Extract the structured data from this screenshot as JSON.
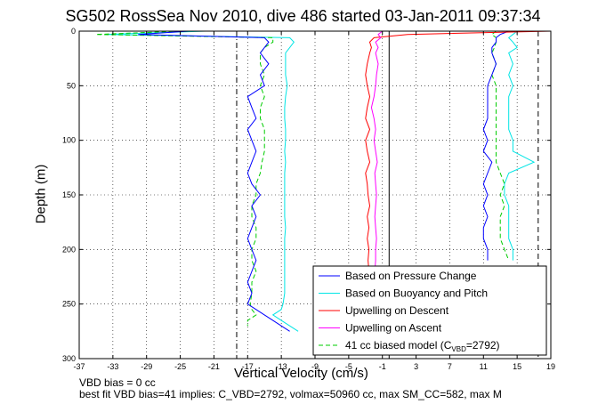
{
  "chart_data": {
    "type": "line",
    "title": "SG502 RossSea Nov 2010, dive 486 started 03-Jan-2011 09:37:34",
    "xlabel": "Vertical Velocity (cm/s)",
    "ylabel": "Depth (m)",
    "xlim": [
      -37,
      19
    ],
    "ylim": [
      0,
      300
    ],
    "y_reversed": true,
    "grid": true,
    "xticks": [
      -37,
      -33,
      -29,
      -25,
      -21,
      -17,
      -13,
      -9,
      -5,
      -1,
      3,
      7,
      11,
      15,
      19
    ],
    "yticks": [
      0,
      50,
      100,
      150,
      200,
      250,
      300
    ],
    "legend_position": "bottom-right",
    "vertical_reference_lines": [
      -18.3,
      -0.2,
      17.5
    ],
    "series": [
      {
        "name": "Based on Pressure Change",
        "color": "#0000ff",
        "style": "solid",
        "y": [
          0,
          3,
          6,
          10,
          15,
          20,
          30,
          40,
          50,
          60,
          70,
          80,
          90,
          100,
          110,
          120,
          130,
          140,
          150,
          160,
          170,
          180,
          190,
          200,
          210,
          220,
          230,
          240,
          250,
          255,
          260,
          265,
          270,
          275
        ],
        "x_descent": [
          -24,
          -30,
          -15,
          -14.5,
          -15,
          -15.5,
          -14.5,
          -15.5,
          -15,
          -17,
          -16.5,
          -16,
          -17,
          -16.5,
          -16,
          -16.5,
          -17,
          -16.5,
          -15.5,
          -16.5,
          -16,
          -16.5,
          -17,
          -16.5,
          -16,
          -16.5,
          -17,
          -16.5,
          -17,
          -16,
          -15,
          -14,
          -13,
          -12
        ],
        "x_ascent": [
          14,
          13,
          12.5,
          12.5,
          12,
          12,
          12.5,
          12,
          11.5,
          11.5,
          11.5,
          11.5,
          11,
          11.5,
          11,
          12,
          11.5,
          11,
          11.5,
          11,
          11.5,
          11,
          11,
          11.5,
          11.5
        ]
      },
      {
        "name": "Based on Buoyancy and Pitch",
        "color": "#00e5e5",
        "style": "solid",
        "y": [
          0,
          3,
          6,
          10,
          15,
          20,
          30,
          40,
          50,
          60,
          70,
          80,
          90,
          100,
          110,
          120,
          130,
          140,
          150,
          160,
          170,
          180,
          190,
          200,
          210,
          220,
          230,
          240,
          250,
          255,
          260,
          265,
          270,
          275
        ],
        "x_descent": [
          -22,
          -34,
          -12,
          -11.5,
          -12,
          -12.5,
          -12.5,
          -12.5,
          -12.3,
          -12.5,
          -12.6,
          -12.6,
          -12.5,
          -12.5,
          -12.6,
          -12.5,
          -12.6,
          -12.6,
          -12.6,
          -12.6,
          -12.6,
          -12.5,
          -12.6,
          -12.6,
          -12.6,
          -12.6,
          -12.6,
          -12.6,
          -12.8,
          -13,
          -14,
          -13,
          -12,
          -11
        ],
        "x_ascent": [
          15,
          14.5,
          14,
          14.5,
          15,
          14,
          14.5,
          14,
          14.5,
          14,
          14,
          14,
          14,
          14.5,
          14.5,
          17,
          14,
          13.5,
          13.5,
          14,
          14,
          14,
          14,
          14.5,
          14.5
        ]
      },
      {
        "name": "Upwelling on Descent",
        "color": "#ff0000",
        "style": "solid",
        "y": [
          0,
          3,
          6,
          10,
          15,
          20,
          30,
          40,
          50,
          60,
          70,
          80,
          90,
          100,
          110,
          120,
          130,
          140,
          150,
          160,
          170,
          180,
          190,
          200,
          210,
          220
        ],
        "x": [
          19,
          2,
          -2,
          -2.5,
          -2.3,
          -2.5,
          -2.8,
          -3,
          -2.8,
          -2.5,
          -2.8,
          -3,
          -2.5,
          -3,
          -2.8,
          -2.5,
          -3,
          -2.8,
          -2.7,
          -2.5,
          -2.8,
          -2.6,
          -2.8,
          -2.6,
          -2.7,
          -2.6
        ]
      },
      {
        "name": "Upwelling on Ascent",
        "color": "#ff00ff",
        "style": "solid",
        "y": [
          0,
          3,
          6,
          10,
          15,
          20,
          30,
          40,
          50,
          60,
          70,
          80,
          90,
          100,
          110,
          120,
          130,
          140,
          150,
          160,
          170,
          180,
          190,
          200,
          210,
          220
        ],
        "x": [
          -1,
          -1.5,
          -1.2,
          -1.8,
          -1.5,
          -1.8,
          -1.5,
          -1.7,
          -1.8,
          -2,
          -2.3,
          -2,
          -1.8,
          -2,
          -1.8,
          -1.6,
          -1.9,
          -1.8,
          -1.7,
          -1.8,
          -1.9,
          -1.8,
          -1.7,
          -1.8,
          -1.8,
          -1.9
        ]
      },
      {
        "name": "41 cc biased model (C_VBD=2792)",
        "color": "#00cc00",
        "style": "dashed",
        "y": [
          0,
          3,
          6,
          10,
          15,
          20,
          30,
          40,
          50,
          60,
          70,
          80,
          90,
          100,
          110,
          120,
          130,
          140,
          150,
          160,
          170,
          180,
          190,
          200,
          210,
          220,
          230,
          240,
          250,
          255,
          260,
          265,
          270
        ],
        "x_descent": [
          -25,
          -35,
          -14,
          -14,
          -15,
          -15.5,
          -15.5,
          -15,
          -15.5,
          -15,
          -15.5,
          -15.5,
          -15,
          -15,
          -15,
          -15.3,
          -15.5,
          -16,
          -16,
          -16.5,
          -16.5,
          -16,
          -16,
          -16.5,
          -16.5,
          -16,
          -16.5,
          -16.5,
          -16.7,
          -16.5,
          -16,
          -17,
          -17
        ],
        "x_ascent": [
          12.5,
          12,
          12.5,
          12.5,
          12.3,
          12,
          12.5,
          12,
          12.5,
          12.5,
          12.5,
          12.5,
          12.5,
          12.5,
          12.5,
          12.5,
          13,
          13.5,
          13,
          13.5,
          13,
          13,
          13,
          13.5,
          14
        ]
      }
    ],
    "legend_entries": [
      "Based on Pressure Change",
      "Based on Buoyancy and Pitch",
      "Upwelling on Descent",
      "Upwelling on Ascent",
      "41 cc biased model (C"
    ],
    "legend_subscript": "VBD",
    "legend_suffix": "=2792)"
  },
  "notes": {
    "line1": "VBD bias = 0 cc",
    "line2": "best fit VBD bias=41 implies: C_VBD=2792, volmax=50960 cc, max SM_CC=582, max M"
  }
}
